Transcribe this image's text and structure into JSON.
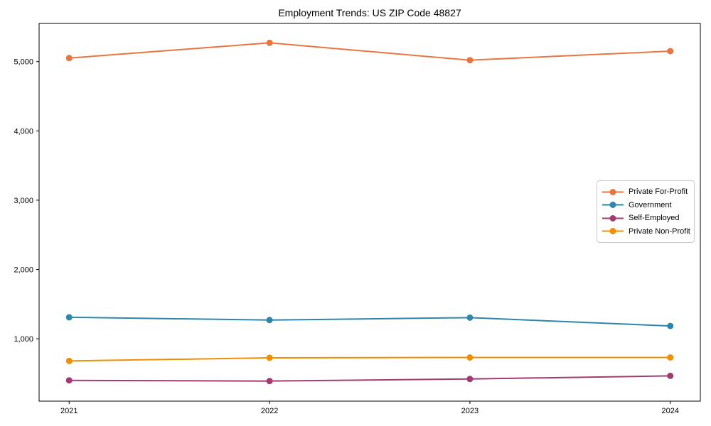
{
  "title": "Employment Trends: US ZIP Code 48827",
  "colors": {
    "background": "#ffffff",
    "axis": "#000000",
    "legend_border": "#c9c9c9"
  },
  "chart_data": {
    "type": "line",
    "title": "Employment Trends: US ZIP Code 48827",
    "xlabel": "",
    "ylabel": "",
    "x": [
      2021,
      2022,
      2023,
      2024
    ],
    "x_tick_labels": [
      "2021",
      "2022",
      "2023",
      "2024"
    ],
    "y_tick_values": [
      1000,
      2000,
      3000,
      4000,
      5000
    ],
    "y_tick_labels": [
      "1,000",
      "2,000",
      "3,000",
      "4,000",
      "5,000"
    ],
    "xlim": [
      2020.85,
      2024.15
    ],
    "ylim": [
      100,
      5550
    ],
    "grid": false,
    "legend_position": "center-right",
    "marker": "circle",
    "series": [
      {
        "name": "Private For-Profit",
        "color": "#E87540",
        "values": [
          5050,
          5270,
          5020,
          5150
        ]
      },
      {
        "name": "Government",
        "color": "#2E86AB",
        "values": [
          1310,
          1270,
          1305,
          1185
        ]
      },
      {
        "name": "Self-Employed",
        "color": "#A23B72",
        "values": [
          400,
          390,
          420,
          465
        ]
      },
      {
        "name": "Private Non-Profit",
        "color": "#F18F01",
        "values": [
          680,
          725,
          730,
          730
        ]
      }
    ]
  }
}
